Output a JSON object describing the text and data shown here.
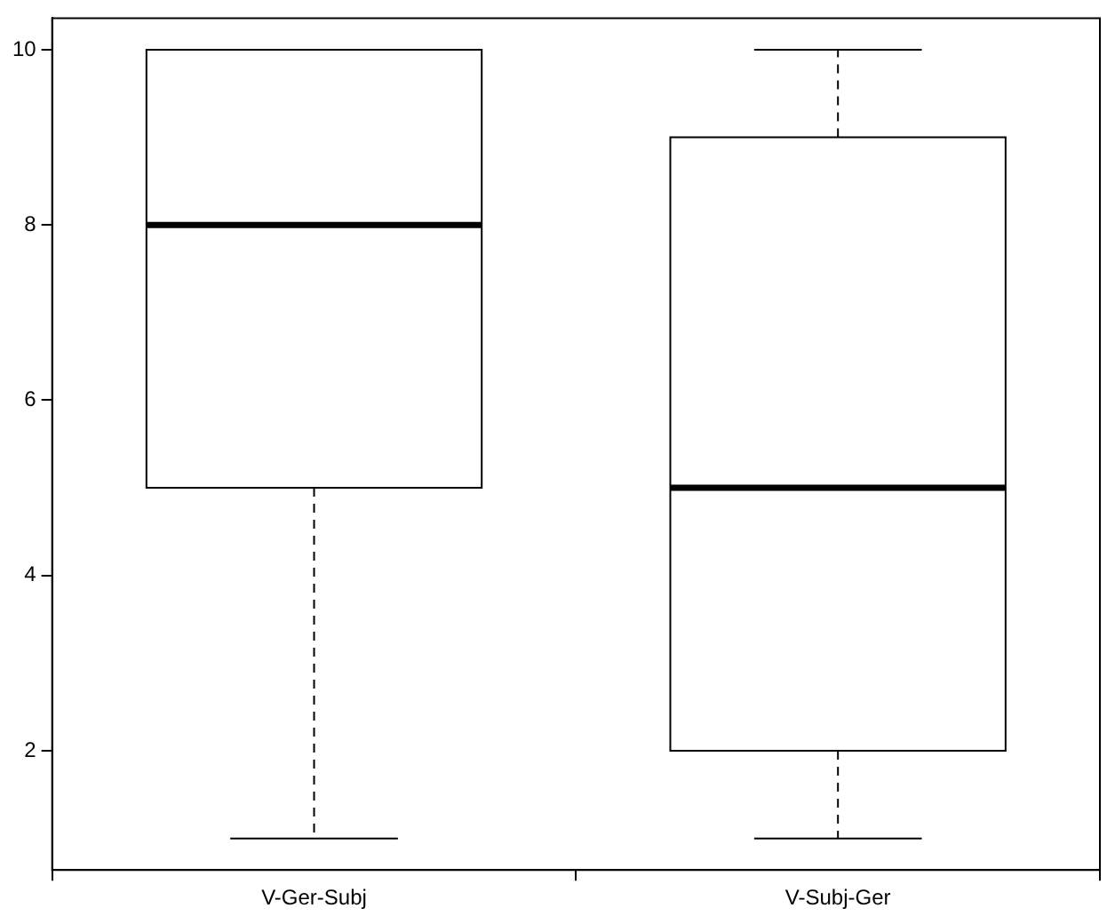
{
  "chart_data": {
    "type": "box",
    "categories": [
      "V-Ger-Subj",
      "V-Subj-Ger"
    ],
    "boxes": [
      {
        "low": 1,
        "q1": 5,
        "median": 8,
        "q3": 10,
        "high": 10
      },
      {
        "low": 1,
        "q1": 2,
        "median": 5,
        "q3": 9,
        "high": 10
      }
    ],
    "ylim": [
      0.64,
      10.36
    ],
    "yticks": [
      2,
      4,
      6,
      8,
      10
    ],
    "grid": false
  }
}
